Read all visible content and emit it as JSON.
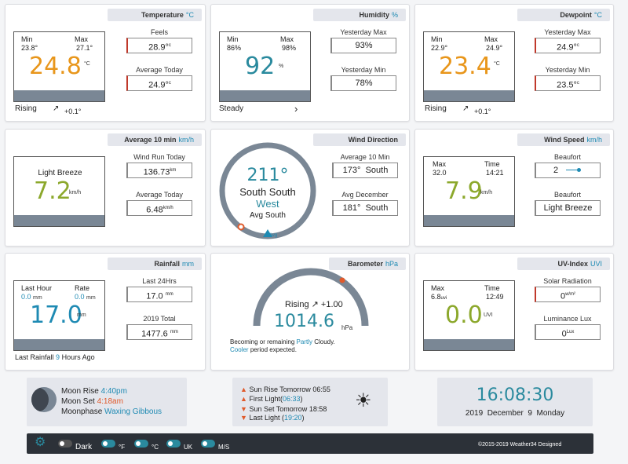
{
  "temperature": {
    "title": "Temperature",
    "unit": "°C",
    "min_label": "Min",
    "min": "23.8°",
    "max_label": "Max",
    "max": "27.1°",
    "value": "24.8",
    "value_unit": "°C",
    "trend": "Rising",
    "trend_delta": "+0.1°",
    "feels_label": "Feels",
    "feels": "28.9°",
    "feels_unit": "c",
    "avg_label": "Average Today",
    "avg": "24.9°",
    "avg_unit": "c"
  },
  "humidity": {
    "title": "Humidity",
    "unit": "%",
    "min_label": "Min",
    "min": "86%",
    "max_label": "Max",
    "max": "98%",
    "value": "92",
    "value_unit": "%",
    "trend": "Steady",
    "trend_icon": "›",
    "ymax_label": "Yesterday Max",
    "ymax": "93%",
    "ymin_label": "Yesterday Min",
    "ymin": "78%"
  },
  "dewpoint": {
    "title": "Dewpoint",
    "unit": "°C",
    "min_label": "Min",
    "min": "22.9°",
    "max_label": "Max",
    "max": "24.9°",
    "value": "23.4",
    "value_unit": "°C",
    "trend": "Rising",
    "trend_delta": "+0.1°",
    "ymax_label": "Yesterday Max",
    "ymax": "24.9°",
    "ymax_unit": "c",
    "ymin_label": "Yesterday Min",
    "ymin": "23.5°",
    "ymin_unit": "c"
  },
  "avgwind": {
    "title": "Average 10 min",
    "unit": "km/h",
    "desc": "Light Breeze",
    "value": "7.2",
    "value_unit": "km/h",
    "run_label": "Wind Run Today",
    "run": "136.73",
    "run_unit": "km",
    "avg_label": "Average Today",
    "avg": "6.48",
    "avg_unit": "km/h"
  },
  "winddir": {
    "title": "Wind Direction",
    "degrees": "211°",
    "dir_line1": "South South",
    "dir_line2": "West",
    "avg_text": "Avg South",
    "avg_marker": "Avg",
    "avg10_label": "Average 10 Min",
    "avg10_deg": "173°",
    "avg10_dir": "South",
    "avgdec_label": "Avg December",
    "avgdec_deg": "181°",
    "avgdec_dir": "South"
  },
  "windspeed": {
    "title": "Wind Speed",
    "unit": "km/h",
    "max_label": "Max",
    "max": "32.0",
    "time_label": "Time",
    "time": "14:21",
    "value": "7.9",
    "value_unit": "km/h",
    "beaufort_label": "Beaufort",
    "beaufort_num": "2",
    "beaufort_label2": "Beaufort",
    "beaufort_desc": "Light Breeze"
  },
  "rainfall": {
    "title": "Rainfall",
    "unit": "mm",
    "lasthour_label": "Last Hour",
    "lasthour": "0.0",
    "lasthour_unit": "mm",
    "rate_label": "Rate",
    "rate": "0.0",
    "rate_unit": "mm",
    "value": "17.0",
    "value_unit": "mm",
    "last24_label": "Last 24Hrs",
    "last24": "17.0",
    "last24_unit": "mm",
    "year_label": "2019 Total",
    "year": "1477.6",
    "year_unit": "mm",
    "last_pre": "Last Rainfall",
    "last_hours": "9",
    "last_post": "Hours Ago"
  },
  "barometer": {
    "title": "Barometer",
    "unit": "hPa",
    "trend": "Rising",
    "trend_delta": "+1.00",
    "value": "1014.6",
    "value_unit": "hPa",
    "f1": "Becoming or remaining",
    "f2": "Partly",
    "f3": "Cloudy.",
    "f4": "Cooler",
    "f5": "period expected."
  },
  "uv": {
    "title": "UV-Index",
    "unit": "UVI",
    "max_label": "Max",
    "max": "6.8",
    "max_unit": "uvi",
    "time_label": "Time",
    "time": "12:49",
    "value": "0.0",
    "value_unit": "UVI",
    "solar_label": "Solar Radiation",
    "solar": "0",
    "solar_unit": "w/m²",
    "lux_label": "Luminance Lux",
    "lux": "0",
    "lux_unit": "Lux"
  },
  "moon": {
    "rise_label": "Moon Rise",
    "rise": "4:40pm",
    "set_label": "Moon Set",
    "set": "4:18am",
    "phase_label": "Moonphase",
    "phase": "Waxing Gibbous"
  },
  "sun": {
    "rise_label": "Sun Rise Tomorrow",
    "rise": "06:55",
    "first_label": "First Light",
    "first": "06:33",
    "set_label": "Sun Set Tomorrow",
    "set": "18:58",
    "last_label": "Last Light",
    "last": "19:20"
  },
  "clock": {
    "time": "16:08:30",
    "date": "2019  December  9  Monday"
  },
  "bar": {
    "dark": "Dark",
    "f": "°F",
    "c": "°C",
    "uk": "UK",
    "ms": "M/S",
    "copyright": "©2015-2019 Weather34 Designed"
  },
  "colors": {
    "temp": "#e8961b",
    "teal": "#2a8a9e",
    "green": "#8ca82c",
    "blue": "#1e8ab3",
    "red": "#e05a2b"
  }
}
